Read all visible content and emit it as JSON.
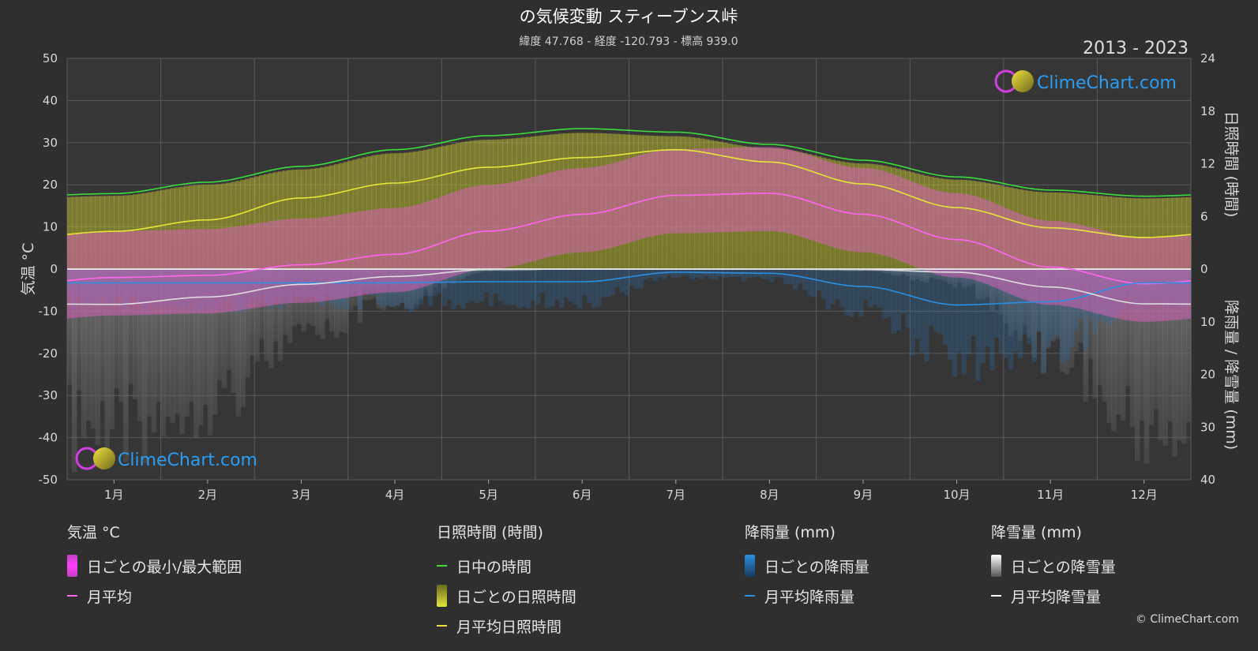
{
  "title": "の気候変動 スティーブンス峠",
  "subtitle": "緯度 47.768 - 経度 -120.793 - 標高 939.0",
  "years": "2013 - 2023",
  "copyright": "© ClimeChart.com",
  "logo_text": "ClimeChart.com",
  "colors": {
    "background": "#2f2f2f",
    "daylight": "#3ddc3d",
    "sunshine": "#e6e63a",
    "temp_band": "#e070c8",
    "temp_avg": "#ff66ee",
    "rain": "#2a8fe0",
    "snow": "#dddddd",
    "logo": "#2a9df4"
  },
  "chart_data": {
    "type": "line",
    "months": [
      "1月",
      "2月",
      "3月",
      "4月",
      "5月",
      "6月",
      "7月",
      "8月",
      "9月",
      "10月",
      "11月",
      "12月"
    ],
    "y_left": {
      "label": "気温 °C",
      "range": [
        -50,
        50
      ],
      "ticks": [
        50,
        40,
        30,
        20,
        10,
        0,
        -10,
        -20,
        -30,
        -40,
        -50
      ]
    },
    "y_right_top": {
      "label": "日照時間 (時間)",
      "range": [
        0,
        24
      ],
      "ticks": [
        24,
        18,
        12,
        6,
        0
      ]
    },
    "y_right_bottom": {
      "label": "降雨量 / 降雪量 (mm)",
      "range": [
        0,
        40
      ],
      "ticks": [
        0,
        10,
        20,
        30,
        40
      ]
    },
    "series": [
      {
        "name": "日中の時間",
        "unit": "hours",
        "values": [
          8.6,
          9.9,
          11.7,
          13.6,
          15.2,
          16.0,
          15.6,
          14.2,
          12.4,
          10.5,
          9.0,
          8.3
        ]
      },
      {
        "name": "月平均日照時間",
        "unit": "hours",
        "values": [
          4.3,
          5.6,
          8.1,
          9.8,
          11.6,
          12.7,
          13.6,
          12.2,
          9.7,
          7.0,
          4.7,
          3.6
        ]
      },
      {
        "name": "月平均",
        "unit": "°C",
        "values": [
          -2.0,
          -1.5,
          1.0,
          3.5,
          9.0,
          13.0,
          17.5,
          18.0,
          13.0,
          7.0,
          0.5,
          -3.5
        ]
      },
      {
        "name": "月平均降雨量",
        "unit": "mm",
        "values": [
          2.6,
          2.6,
          2.6,
          2.6,
          2.4,
          2.4,
          0.6,
          0.8,
          3.3,
          6.8,
          6.2,
          2.6
        ]
      },
      {
        "name": "月平均降雪量",
        "unit": "mm",
        "values": [
          6.7,
          5.3,
          2.9,
          1.4,
          0.1,
          0.0,
          0.0,
          0.0,
          0.1,
          0.6,
          3.4,
          6.6
        ]
      }
    ],
    "grid": true
  },
  "legend": {
    "temp": {
      "title": "気温 °C",
      "items": [
        "日ごとの最小/最大範囲",
        "月平均"
      ]
    },
    "sun": {
      "title": "日照時間 (時間)",
      "items": [
        "日中の時間",
        "日ごとの日照時間",
        "月平均日照時間"
      ]
    },
    "rain": {
      "title": "降雨量 (mm)",
      "items": [
        "日ごとの降雨量",
        "月平均降雨量"
      ]
    },
    "snow": {
      "title": "降雪量 (mm)",
      "items": [
        "日ごとの降雪量",
        "月平均降雪量"
      ]
    }
  }
}
